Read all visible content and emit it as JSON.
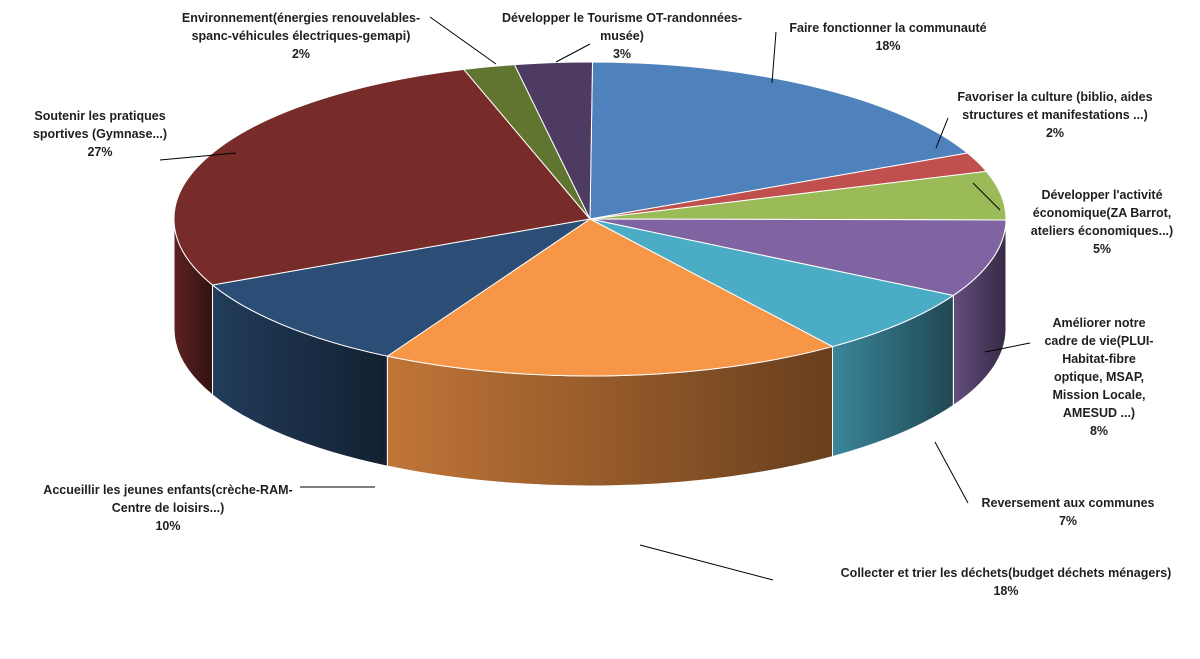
{
  "chart_data": {
    "type": "pie",
    "title": "",
    "slices": [
      {
        "label": [
          "Faire fonctionner la communauté"
        ],
        "pct_label": "18%",
        "value": 18,
        "color": "#4F81BD"
      },
      {
        "label": [
          "Favoriser la culture (biblio, aides",
          "structures et manifestations ...)"
        ],
        "pct_label": "2%",
        "value": 2,
        "color": "#C0504D"
      },
      {
        "label": [
          "Développer l'activité",
          "économique(ZA Barrot,",
          "ateliers économiques...)"
        ],
        "pct_label": "5%",
        "value": 5,
        "color": "#9BBB59"
      },
      {
        "label": [
          "Améliorer notre",
          "cadre de vie(PLUI-",
          "Habitat-fibre",
          "optique, MSAP,",
          "Mission Locale,",
          "AMESUD ...)"
        ],
        "pct_label": "8%",
        "value": 8,
        "color": "#8064A2"
      },
      {
        "label": [
          "Reversement  aux communes"
        ],
        "pct_label": "7%",
        "value": 7,
        "color": "#4BACC6"
      },
      {
        "label": [
          "Collecter et trier les déchets(budget déchets ménagers)"
        ],
        "pct_label": "18%",
        "value": 18,
        "color": "#F79646"
      },
      {
        "label": [
          "Accueillir les jeunes enfants(crèche-RAM-",
          "Centre de loisirs...)"
        ],
        "pct_label": "10%",
        "value": 10,
        "color": "#2C4D75"
      },
      {
        "label": [
          "Soutenir les pratiques",
          "sportives (Gymnase...)"
        ],
        "pct_label": "27%",
        "value": 27,
        "color": "#772C2A"
      },
      {
        "label": [
          "Environnement(énergies renouvelables-",
          "spanc-véhicules électriques-gemapi)"
        ],
        "pct_label": "2%",
        "value": 2,
        "color": "#5F7530"
      },
      {
        "label": [
          "Développer le Tourisme OT-randonnées-",
          "musée)"
        ],
        "pct_label": "3%",
        "value": 3,
        "color": "#4D3B62"
      }
    ],
    "legend": "none",
    "style": "3d-pie"
  }
}
